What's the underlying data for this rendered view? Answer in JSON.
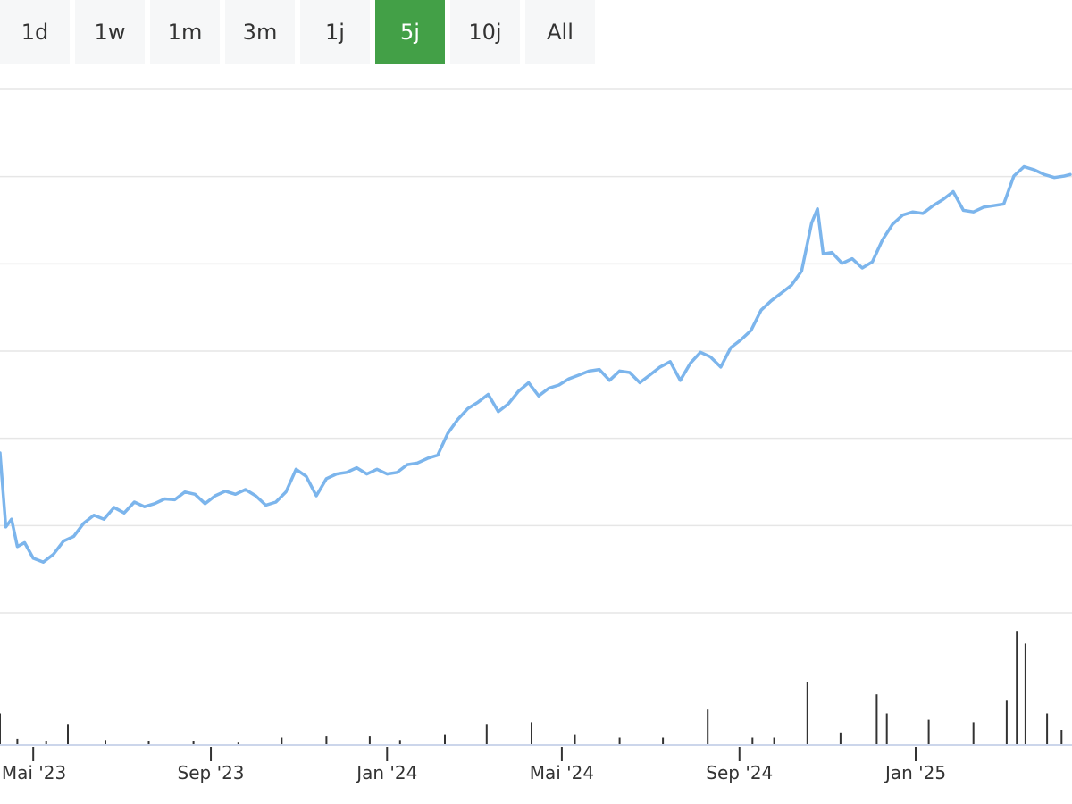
{
  "range_selector": {
    "buttons": [
      {
        "label": "1d",
        "active": false
      },
      {
        "label": "1w",
        "active": false
      },
      {
        "label": "1m",
        "active": false
      },
      {
        "label": "3m",
        "active": false
      },
      {
        "label": "1j",
        "active": false
      },
      {
        "label": "5j",
        "active": true
      },
      {
        "label": "10j",
        "active": false
      },
      {
        "label": "All",
        "active": false
      }
    ],
    "active_color": "#43a047"
  },
  "chart_data": {
    "type": "line",
    "title": "",
    "xlabel": "",
    "ylabel": "",
    "grid": true,
    "legend": "none",
    "series_color": "#7cb5ec",
    "volume_color": "#333333",
    "y_axis": {
      "tick_labels_visible": false,
      "gridline_count": 7
    },
    "x_axis": {
      "range": [
        "2023-04-08",
        "2025-04-18"
      ],
      "ticks": [
        {
          "date": "2023-05-01",
          "label": "Mai '23"
        },
        {
          "date": "2023-09-01",
          "label": "Sep '23"
        },
        {
          "date": "2024-01-01",
          "label": "Jan '24"
        },
        {
          "date": "2024-05-01",
          "label": "Mai '24"
        },
        {
          "date": "2024-09-01",
          "label": "Sep '24"
        },
        {
          "date": "2025-01-01",
          "label": "Jan '25"
        }
      ]
    },
    "series": [
      {
        "values": [
          [
            "2023-04-08",
            4.05
          ],
          [
            "2023-04-12",
            3.1
          ],
          [
            "2023-04-16",
            3.2
          ],
          [
            "2023-04-20",
            2.85
          ],
          [
            "2023-04-25",
            2.9
          ],
          [
            "2023-05-01",
            2.7
          ],
          [
            "2023-05-08",
            2.65
          ],
          [
            "2023-05-15",
            2.75
          ],
          [
            "2023-05-22",
            2.92
          ],
          [
            "2023-05-29",
            2.98
          ],
          [
            "2023-06-05",
            3.15
          ],
          [
            "2023-06-12",
            3.25
          ],
          [
            "2023-06-19",
            3.2
          ],
          [
            "2023-06-26",
            3.35
          ],
          [
            "2023-07-03",
            3.28
          ],
          [
            "2023-07-10",
            3.42
          ],
          [
            "2023-07-17",
            3.36
          ],
          [
            "2023-07-24",
            3.4
          ],
          [
            "2023-07-31",
            3.46
          ],
          [
            "2023-08-07",
            3.45
          ],
          [
            "2023-08-14",
            3.55
          ],
          [
            "2023-08-21",
            3.52
          ],
          [
            "2023-08-28",
            3.4
          ],
          [
            "2023-09-04",
            3.5
          ],
          [
            "2023-09-11",
            3.56
          ],
          [
            "2023-09-18",
            3.52
          ],
          [
            "2023-09-25",
            3.58
          ],
          [
            "2023-10-02",
            3.5
          ],
          [
            "2023-10-09",
            3.38
          ],
          [
            "2023-10-16",
            3.42
          ],
          [
            "2023-10-23",
            3.55
          ],
          [
            "2023-10-30",
            3.84
          ],
          [
            "2023-11-06",
            3.75
          ],
          [
            "2023-11-13",
            3.5
          ],
          [
            "2023-11-20",
            3.72
          ],
          [
            "2023-11-27",
            3.78
          ],
          [
            "2023-12-04",
            3.8
          ],
          [
            "2023-12-11",
            3.86
          ],
          [
            "2023-12-18",
            3.78
          ],
          [
            "2023-12-25",
            3.84
          ],
          [
            "2024-01-01",
            3.78
          ],
          [
            "2024-01-08",
            3.8
          ],
          [
            "2024-01-15",
            3.9
          ],
          [
            "2024-01-22",
            3.92
          ],
          [
            "2024-01-29",
            3.98
          ],
          [
            "2024-02-05",
            4.02
          ],
          [
            "2024-02-12",
            4.3
          ],
          [
            "2024-02-19",
            4.48
          ],
          [
            "2024-02-26",
            4.62
          ],
          [
            "2024-03-04",
            4.7
          ],
          [
            "2024-03-11",
            4.8
          ],
          [
            "2024-03-18",
            4.58
          ],
          [
            "2024-03-25",
            4.68
          ],
          [
            "2024-04-01",
            4.84
          ],
          [
            "2024-04-08",
            4.95
          ],
          [
            "2024-04-15",
            4.78
          ],
          [
            "2024-04-22",
            4.88
          ],
          [
            "2024-04-29",
            4.92
          ],
          [
            "2024-05-06",
            5.0
          ],
          [
            "2024-05-13",
            5.05
          ],
          [
            "2024-05-20",
            5.1
          ],
          [
            "2024-05-27",
            5.12
          ],
          [
            "2024-06-03",
            4.98
          ],
          [
            "2024-06-10",
            5.1
          ],
          [
            "2024-06-17",
            5.08
          ],
          [
            "2024-06-24",
            4.95
          ],
          [
            "2024-07-01",
            5.05
          ],
          [
            "2024-07-08",
            5.15
          ],
          [
            "2024-07-15",
            5.22
          ],
          [
            "2024-07-22",
            4.98
          ],
          [
            "2024-07-29",
            5.2
          ],
          [
            "2024-08-05",
            5.34
          ],
          [
            "2024-08-12",
            5.28
          ],
          [
            "2024-08-19",
            5.15
          ],
          [
            "2024-08-26",
            5.4
          ],
          [
            "2024-09-02",
            5.5
          ],
          [
            "2024-09-09",
            5.62
          ],
          [
            "2024-09-16",
            5.88
          ],
          [
            "2024-09-23",
            6.0
          ],
          [
            "2024-09-30",
            6.1
          ],
          [
            "2024-10-07",
            6.2
          ],
          [
            "2024-10-14",
            6.38
          ],
          [
            "2024-10-21",
            7.0
          ],
          [
            "2024-10-25",
            7.18
          ],
          [
            "2024-10-29",
            6.6
          ],
          [
            "2024-11-04",
            6.62
          ],
          [
            "2024-11-11",
            6.48
          ],
          [
            "2024-11-18",
            6.54
          ],
          [
            "2024-11-25",
            6.42
          ],
          [
            "2024-12-02",
            6.5
          ],
          [
            "2024-12-09",
            6.78
          ],
          [
            "2024-12-16",
            6.98
          ],
          [
            "2024-12-23",
            7.1
          ],
          [
            "2024-12-30",
            7.14
          ],
          [
            "2025-01-06",
            7.12
          ],
          [
            "2025-01-13",
            7.22
          ],
          [
            "2025-01-20",
            7.3
          ],
          [
            "2025-01-27",
            7.4
          ],
          [
            "2025-02-03",
            7.16
          ],
          [
            "2025-02-10",
            7.14
          ],
          [
            "2025-02-17",
            7.2
          ],
          [
            "2025-02-24",
            7.22
          ],
          [
            "2025-03-03",
            7.24
          ],
          [
            "2025-03-10",
            7.6
          ],
          [
            "2025-03-17",
            7.72
          ],
          [
            "2025-03-24",
            7.68
          ],
          [
            "2025-03-31",
            7.62
          ],
          [
            "2025-04-07",
            7.58
          ],
          [
            "2025-04-14",
            7.6
          ],
          [
            "2025-04-18",
            7.62
          ]
        ]
      }
    ],
    "volume": {
      "values": [
        [
          "2023-04-08",
          0.25
        ],
        [
          "2023-04-20",
          0.05
        ],
        [
          "2023-05-10",
          0.03
        ],
        [
          "2023-05-25",
          0.16
        ],
        [
          "2023-06-20",
          0.04
        ],
        [
          "2023-07-20",
          0.03
        ],
        [
          "2023-08-20",
          0.03
        ],
        [
          "2023-09-20",
          0.02
        ],
        [
          "2023-10-20",
          0.06
        ],
        [
          "2023-11-20",
          0.07
        ],
        [
          "2023-12-20",
          0.07
        ],
        [
          "2024-01-10",
          0.04
        ],
        [
          "2024-02-10",
          0.08
        ],
        [
          "2024-03-10",
          0.16
        ],
        [
          "2024-04-10",
          0.18
        ],
        [
          "2024-05-10",
          0.08
        ],
        [
          "2024-06-10",
          0.06
        ],
        [
          "2024-07-10",
          0.06
        ],
        [
          "2024-08-10",
          0.28
        ],
        [
          "2024-09-10",
          0.06
        ],
        [
          "2024-09-25",
          0.06
        ],
        [
          "2024-10-18",
          0.5
        ],
        [
          "2024-11-10",
          0.1
        ],
        [
          "2024-12-05",
          0.4
        ],
        [
          "2024-12-12",
          0.25
        ],
        [
          "2025-01-10",
          0.2
        ],
        [
          "2025-02-10",
          0.18
        ],
        [
          "2025-03-05",
          0.35
        ],
        [
          "2025-03-12",
          0.9
        ],
        [
          "2025-03-18",
          0.8
        ],
        [
          "2025-04-02",
          0.25
        ],
        [
          "2025-04-12",
          0.12
        ]
      ]
    }
  }
}
